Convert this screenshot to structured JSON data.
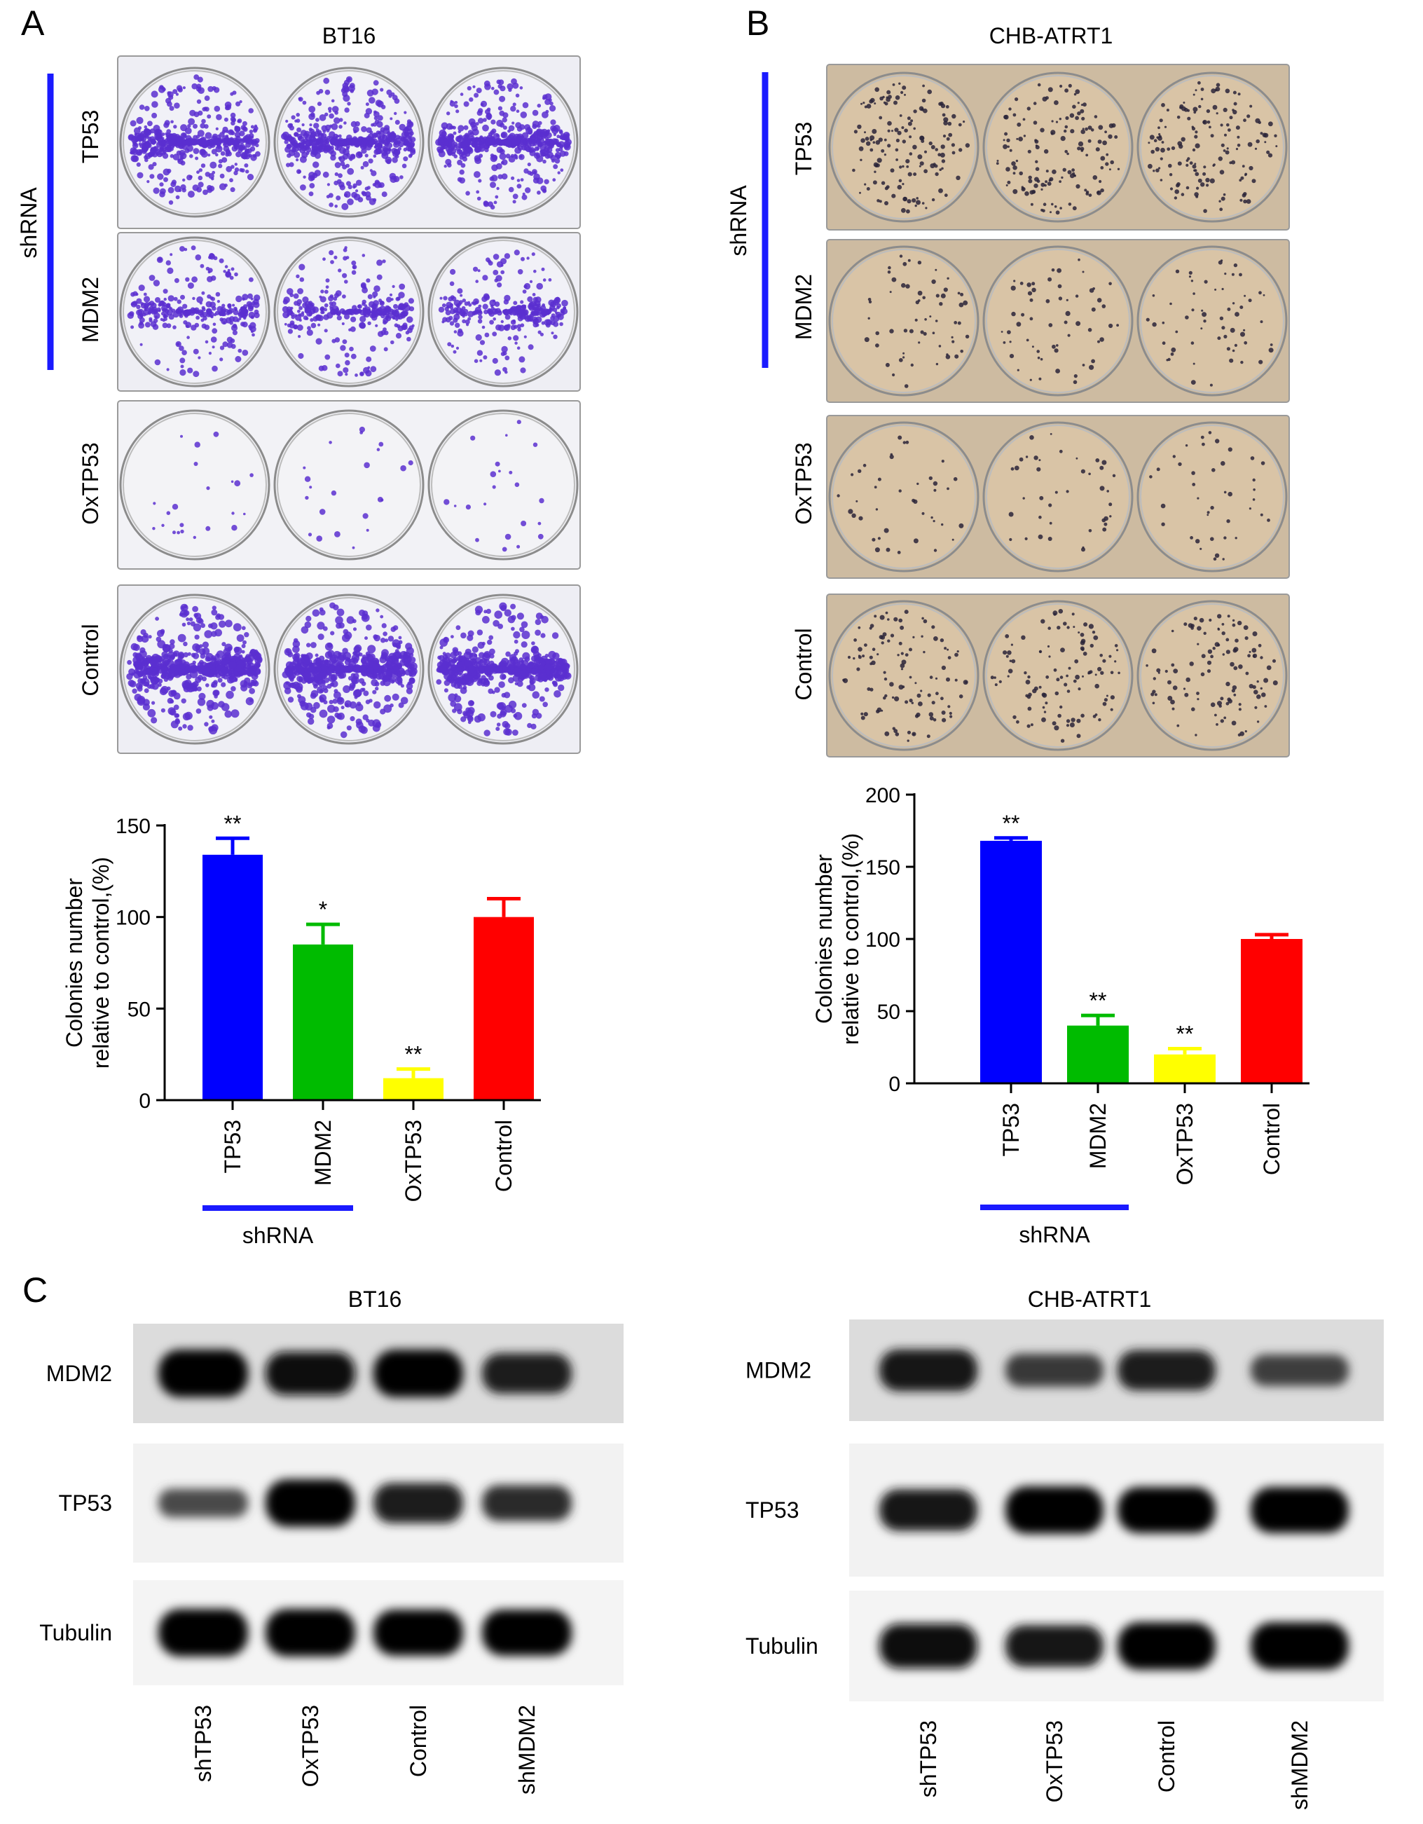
{
  "panels": {
    "A": {
      "letter": "A",
      "title": "BT16"
    },
    "B": {
      "letter": "B",
      "title": "CHB-ATRT1"
    },
    "C": {
      "letter": "C",
      "left_title": "BT16",
      "right_title": "CHB-ATRT1"
    }
  },
  "plates": {
    "group_label": "shRNA",
    "rows": [
      "TP53",
      "MDM2",
      "OxTP53",
      "Control"
    ],
    "BT16_colony_color": "#5a2fd0",
    "CHB_colony_color": "#2a2438",
    "CHB_medium_color": "#d9c4a6"
  },
  "colors": {
    "TP53": "#0000ff",
    "MDM2": "#00bb00",
    "OxTP53": "#ffff00",
    "Control": "#ff0000",
    "shRNA_line": "#1a1aff"
  },
  "chart_data": [
    {
      "type": "bar",
      "panel": "A",
      "categories": [
        "TP53",
        "MDM2",
        "OxTP53",
        "Control"
      ],
      "values": [
        134,
        85,
        12,
        100
      ],
      "errors": [
        9,
        11,
        5,
        10
      ],
      "significance": [
        "**",
        "*",
        "**",
        ""
      ],
      "ylabel_line1": "Colonies number",
      "ylabel_line2": "relative to control,(%)",
      "ylim": [
        0,
        150
      ],
      "yticks": [
        0,
        50,
        100,
        150
      ],
      "group_label": "shRNA",
      "grid": false
    },
    {
      "type": "bar",
      "panel": "B",
      "categories": [
        "TP53",
        "MDM2",
        "OxTP53",
        "Control"
      ],
      "values": [
        168,
        40,
        20,
        100
      ],
      "errors": [
        2,
        7,
        4,
        3
      ],
      "significance": [
        "**",
        "**",
        "**",
        ""
      ],
      "ylabel_line1": "Colonies number",
      "ylabel_line2": "relative to control,(%)",
      "ylim": [
        0,
        200
      ],
      "yticks": [
        0,
        50,
        100,
        150,
        200
      ],
      "group_label": "shRNA",
      "grid": false
    }
  ],
  "western": {
    "row_labels": [
      "MDM2",
      "TP53",
      "Tubulin"
    ],
    "lane_labels": [
      "shTP53",
      "OxTP53",
      "Control",
      "shMDM2"
    ],
    "BT16": {
      "MDM2": [
        1.0,
        0.85,
        1.0,
        0.75
      ],
      "TP53": [
        0.35,
        1.0,
        0.75,
        0.6
      ],
      "Tubulin": [
        1.0,
        1.0,
        0.95,
        0.95
      ]
    },
    "CHB": {
      "MDM2": [
        0.8,
        0.5,
        0.75,
        0.45
      ],
      "TP53": [
        0.8,
        1.0,
        0.95,
        0.95
      ],
      "Tubulin": [
        0.9,
        0.8,
        1.0,
        1.0
      ]
    }
  }
}
